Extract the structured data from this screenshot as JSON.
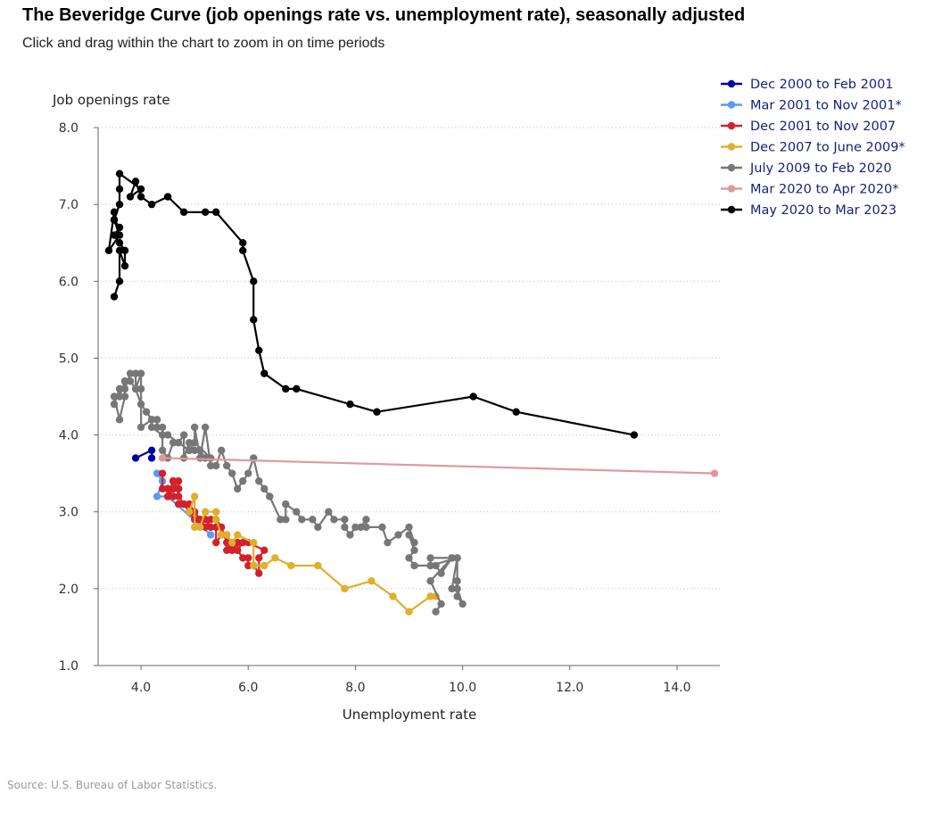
{
  "title": "The Beveridge Curve (job openings rate vs. unemployment rate), seasonally adjusted",
  "subtitle": "Click and drag within the chart to zoom in on time periods",
  "source": "Source: U.S. Bureau of Labor Statistics.",
  "chart_data": {
    "type": "line",
    "xlabel": "Unemployment rate",
    "ylabel": "Job openings rate",
    "xlim": [
      3.2,
      14.8
    ],
    "ylim": [
      1.0,
      8.0
    ],
    "xticks": [
      4.0,
      6.0,
      8.0,
      10.0,
      12.0,
      14.0
    ],
    "yticks": [
      1.0,
      2.0,
      3.0,
      4.0,
      5.0,
      6.0,
      7.0,
      8.0
    ],
    "grid": "horizontal dotted",
    "legend": "top-right",
    "series": [
      {
        "name": "Dec 2000 to Feb 2001",
        "color": "#00009f",
        "points": [
          [
            3.9,
            3.7
          ],
          [
            4.2,
            3.8
          ],
          [
            4.2,
            3.7
          ]
        ]
      },
      {
        "name": "Mar 2001 to Nov 2001*",
        "color": "#5b9bf0",
        "points": [
          [
            4.3,
            3.5
          ],
          [
            4.4,
            3.4
          ],
          [
            4.3,
            3.2
          ],
          [
            4.5,
            3.2
          ],
          [
            5.3,
            2.7
          ]
        ]
      },
      {
        "name": "Dec 2001 to Nov 2007",
        "color": "#d3212a",
        "points": [
          [
            4.4,
            3.5
          ],
          [
            4.4,
            3.3
          ],
          [
            4.5,
            3.3
          ],
          [
            4.5,
            3.2
          ],
          [
            4.6,
            3.4
          ],
          [
            4.6,
            3.3
          ],
          [
            4.7,
            3.3
          ],
          [
            4.7,
            3.4
          ],
          [
            4.7,
            3.2
          ],
          [
            4.8,
            3.1
          ],
          [
            4.7,
            3.1
          ],
          [
            4.9,
            3.1
          ],
          [
            5.0,
            3.0
          ],
          [
            5.1,
            2.9
          ],
          [
            5.2,
            2.9
          ],
          [
            5.3,
            2.8
          ],
          [
            5.4,
            2.8
          ],
          [
            5.4,
            2.6
          ],
          [
            5.5,
            2.7
          ],
          [
            5.6,
            2.7
          ],
          [
            5.6,
            2.5
          ],
          [
            5.7,
            2.6
          ],
          [
            5.7,
            2.5
          ],
          [
            5.8,
            2.6
          ],
          [
            5.8,
            2.5
          ],
          [
            5.9,
            2.4
          ],
          [
            6.0,
            2.4
          ],
          [
            6.0,
            2.3
          ],
          [
            6.1,
            2.3
          ],
          [
            6.2,
            2.2
          ],
          [
            6.2,
            2.4
          ],
          [
            6.3,
            2.5
          ],
          [
            6.0,
            2.6
          ],
          [
            5.9,
            2.6
          ],
          [
            5.8,
            2.5
          ],
          [
            5.7,
            2.5
          ],
          [
            5.6,
            2.6
          ],
          [
            5.5,
            2.8
          ],
          [
            5.4,
            2.9
          ],
          [
            5.3,
            2.9
          ],
          [
            5.2,
            2.8
          ],
          [
            5.1,
            2.9
          ],
          [
            5.0,
            2.9
          ],
          [
            4.9,
            3.0
          ],
          [
            4.8,
            3.1
          ],
          [
            4.7,
            3.2
          ],
          [
            4.6,
            3.2
          ],
          [
            4.5,
            3.3
          ],
          [
            4.5,
            3.2
          ],
          [
            4.6,
            3.3
          ],
          [
            4.7,
            3.3
          ],
          [
            4.6,
            3.4
          ]
        ]
      },
      {
        "name": "Dec 2007 to June 2009*",
        "color": "#e0af2b",
        "points": [
          [
            4.9,
            3.0
          ],
          [
            5.0,
            3.2
          ],
          [
            5.0,
            2.8
          ],
          [
            5.1,
            2.8
          ],
          [
            5.2,
            3.0
          ],
          [
            5.4,
            3.0
          ],
          [
            5.4,
            2.9
          ],
          [
            5.5,
            2.7
          ],
          [
            5.6,
            2.7
          ],
          [
            5.7,
            2.6
          ],
          [
            5.8,
            2.7
          ],
          [
            6.1,
            2.6
          ],
          [
            6.1,
            2.3
          ],
          [
            6.3,
            2.3
          ],
          [
            6.5,
            2.4
          ],
          [
            6.8,
            2.3
          ],
          [
            7.3,
            2.3
          ],
          [
            7.8,
            2.0
          ],
          [
            8.3,
            2.1
          ],
          [
            8.7,
            1.9
          ],
          [
            9.0,
            1.7
          ],
          [
            9.4,
            1.9
          ],
          [
            9.5,
            1.9
          ]
        ]
      },
      {
        "name": "July 2009 to Feb 2020",
        "color": "#777777",
        "points": [
          [
            9.5,
            1.7
          ],
          [
            9.6,
            1.8
          ],
          [
            9.4,
            2.1
          ],
          [
            9.8,
            2.4
          ],
          [
            9.9,
            2.4
          ],
          [
            9.9,
            2.1
          ],
          [
            9.9,
            1.9
          ],
          [
            10.0,
            1.8
          ],
          [
            9.9,
            2.0
          ],
          [
            9.8,
            2.0
          ],
          [
            9.9,
            2.4
          ],
          [
            9.4,
            2.3
          ],
          [
            9.4,
            2.4
          ],
          [
            9.8,
            2.4
          ],
          [
            9.6,
            2.2
          ],
          [
            9.5,
            2.3
          ],
          [
            9.1,
            2.3
          ],
          [
            9.0,
            2.4
          ],
          [
            9.1,
            2.5
          ],
          [
            9.0,
            2.7
          ],
          [
            9.1,
            2.6
          ],
          [
            9.0,
            2.8
          ],
          [
            8.8,
            2.7
          ],
          [
            8.6,
            2.6
          ],
          [
            8.5,
            2.8
          ],
          [
            8.2,
            2.8
          ],
          [
            8.2,
            2.9
          ],
          [
            8.1,
            2.8
          ],
          [
            8.0,
            2.8
          ],
          [
            7.9,
            2.7
          ],
          [
            7.8,
            2.8
          ],
          [
            7.8,
            2.9
          ],
          [
            7.6,
            2.9
          ],
          [
            7.5,
            3.0
          ],
          [
            7.3,
            2.8
          ],
          [
            7.2,
            2.9
          ],
          [
            7.0,
            2.9
          ],
          [
            6.9,
            3.0
          ],
          [
            6.7,
            3.1
          ],
          [
            6.7,
            2.9
          ],
          [
            6.6,
            2.9
          ],
          [
            6.4,
            3.2
          ],
          [
            6.3,
            3.3
          ],
          [
            6.2,
            3.4
          ],
          [
            6.1,
            3.7
          ],
          [
            6.0,
            3.5
          ],
          [
            5.9,
            3.4
          ],
          [
            5.8,
            3.3
          ],
          [
            5.7,
            3.5
          ],
          [
            5.6,
            3.6
          ],
          [
            5.5,
            3.8
          ],
          [
            5.4,
            3.6
          ],
          [
            5.3,
            3.6
          ],
          [
            5.2,
            4.1
          ],
          [
            5.1,
            3.7
          ],
          [
            5.0,
            4.1
          ],
          [
            5.0,
            3.9
          ],
          [
            4.9,
            3.8
          ],
          [
            4.9,
            3.9
          ],
          [
            4.8,
            3.7
          ],
          [
            4.8,
            4.0
          ],
          [
            4.7,
            3.9
          ],
          [
            4.6,
            3.9
          ],
          [
            4.5,
            3.7
          ],
          [
            4.4,
            3.8
          ],
          [
            4.4,
            4.1
          ],
          [
            4.3,
            4.1
          ],
          [
            4.3,
            4.2
          ],
          [
            4.2,
            4.2
          ],
          [
            4.1,
            4.3
          ],
          [
            4.0,
            4.4
          ],
          [
            3.9,
            4.6
          ],
          [
            3.9,
            4.8
          ],
          [
            3.8,
            4.8
          ],
          [
            3.7,
            4.6
          ],
          [
            3.7,
            4.7
          ],
          [
            3.6,
            4.5
          ],
          [
            3.6,
            4.6
          ],
          [
            3.5,
            4.4
          ],
          [
            3.5,
            4.5
          ],
          [
            3.6,
            4.2
          ],
          [
            3.7,
            4.5
          ],
          [
            3.7,
            4.7
          ],
          [
            3.8,
            4.7
          ],
          [
            3.9,
            4.6
          ],
          [
            4.0,
            4.8
          ],
          [
            4.0,
            4.6
          ],
          [
            4.0,
            4.1
          ],
          [
            4.2,
            4.2
          ],
          [
            4.2,
            4.1
          ],
          [
            4.4,
            4.0
          ],
          [
            4.5,
            4.0
          ],
          [
            4.7,
            3.9
          ],
          [
            4.9,
            3.8
          ],
          [
            5.0,
            3.8
          ],
          [
            5.1,
            3.8
          ],
          [
            5.2,
            3.7
          ],
          [
            5.3,
            3.7
          ],
          [
            5.0,
            3.9
          ]
        ]
      },
      {
        "name": "Mar 2020 to Apr 2020*",
        "color": "#de9a9a",
        "points": [
          [
            4.4,
            3.7
          ],
          [
            14.7,
            3.5
          ]
        ]
      },
      {
        "name": "May 2020 to Mar 2023",
        "color": "#000000",
        "points": [
          [
            13.2,
            4.0
          ],
          [
            11.0,
            4.3
          ],
          [
            10.2,
            4.5
          ],
          [
            8.4,
            4.3
          ],
          [
            7.9,
            4.4
          ],
          [
            6.9,
            4.6
          ],
          [
            6.7,
            4.6
          ],
          [
            6.3,
            4.8
          ],
          [
            6.2,
            5.1
          ],
          [
            6.1,
            5.5
          ],
          [
            6.1,
            6.0
          ],
          [
            5.9,
            6.4
          ],
          [
            5.9,
            6.5
          ],
          [
            5.4,
            6.9
          ],
          [
            5.2,
            6.9
          ],
          [
            4.8,
            6.9
          ],
          [
            4.5,
            7.1
          ],
          [
            4.2,
            7.0
          ],
          [
            4.0,
            7.1
          ],
          [
            3.9,
            7.3
          ],
          [
            3.8,
            7.1
          ],
          [
            4.0,
            7.2
          ],
          [
            3.6,
            7.4
          ],
          [
            3.6,
            7.2
          ],
          [
            3.6,
            7.0
          ],
          [
            3.5,
            6.8
          ],
          [
            3.5,
            6.9
          ],
          [
            3.4,
            6.4
          ],
          [
            3.6,
            6.6
          ],
          [
            3.5,
            6.8
          ],
          [
            3.6,
            6.7
          ],
          [
            3.5,
            6.6
          ],
          [
            3.6,
            6.5
          ],
          [
            3.7,
            6.4
          ],
          [
            3.7,
            6.2
          ],
          [
            3.6,
            6.4
          ],
          [
            3.6,
            6.0
          ],
          [
            3.5,
            5.8
          ]
        ]
      }
    ]
  }
}
